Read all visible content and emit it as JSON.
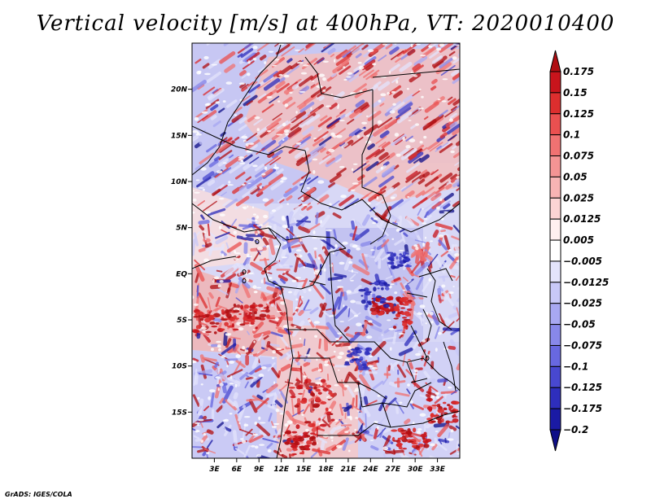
{
  "title": "Vertical velocity [m/s] at 400hPa, VT: 2020010400",
  "credit": "GrADS: IGES/COLA",
  "map": {
    "lat_range": [
      -20,
      25
    ],
    "lon_range": [
      0,
      36
    ],
    "lat_ticks": [
      {
        "value": 20,
        "label": "20N"
      },
      {
        "value": 15,
        "label": "15N"
      },
      {
        "value": 10,
        "label": "10N"
      },
      {
        "value": 5,
        "label": "5N"
      },
      {
        "value": 0,
        "label": "EQ"
      },
      {
        "value": -5,
        "label": "5S"
      },
      {
        "value": -10,
        "label": "10S"
      },
      {
        "value": -15,
        "label": "15S"
      }
    ],
    "lon_ticks": [
      {
        "value": 3,
        "label": "3E"
      },
      {
        "value": 6,
        "label": "6E"
      },
      {
        "value": 9,
        "label": "9E"
      },
      {
        "value": 12,
        "label": "12E"
      },
      {
        "value": 15,
        "label": "15E"
      },
      {
        "value": 18,
        "label": "18E"
      },
      {
        "value": 21,
        "label": "21E"
      },
      {
        "value": 24,
        "label": "24E"
      },
      {
        "value": 27,
        "label": "27E"
      },
      {
        "value": 30,
        "label": "30E"
      },
      {
        "value": 33,
        "label": "33E"
      }
    ]
  },
  "colorbar": {
    "labels": [
      "0.175",
      "0.15",
      "0.125",
      "0.1",
      "0.075",
      "0.05",
      "0.025",
      "0.0125",
      "0.005",
      "−0.005",
      "−0.0125",
      "−0.025",
      "−0.05",
      "−0.075",
      "−0.1",
      "−0.125",
      "−0.175",
      "−0.2"
    ],
    "colors": [
      "#b00e12",
      "#c8141c",
      "#dc2e2e",
      "#ea5050",
      "#f07272",
      "#f49494",
      "#f8b4b4",
      "#fcd4d4",
      "#fff0f0",
      "#ffffff",
      "#e4e4fc",
      "#c8c8f8",
      "#a8a8f2",
      "#8888ea",
      "#6868e0",
      "#4848d0",
      "#2e2ebc",
      "#1a1aa4",
      "#0e0e88"
    ]
  }
}
